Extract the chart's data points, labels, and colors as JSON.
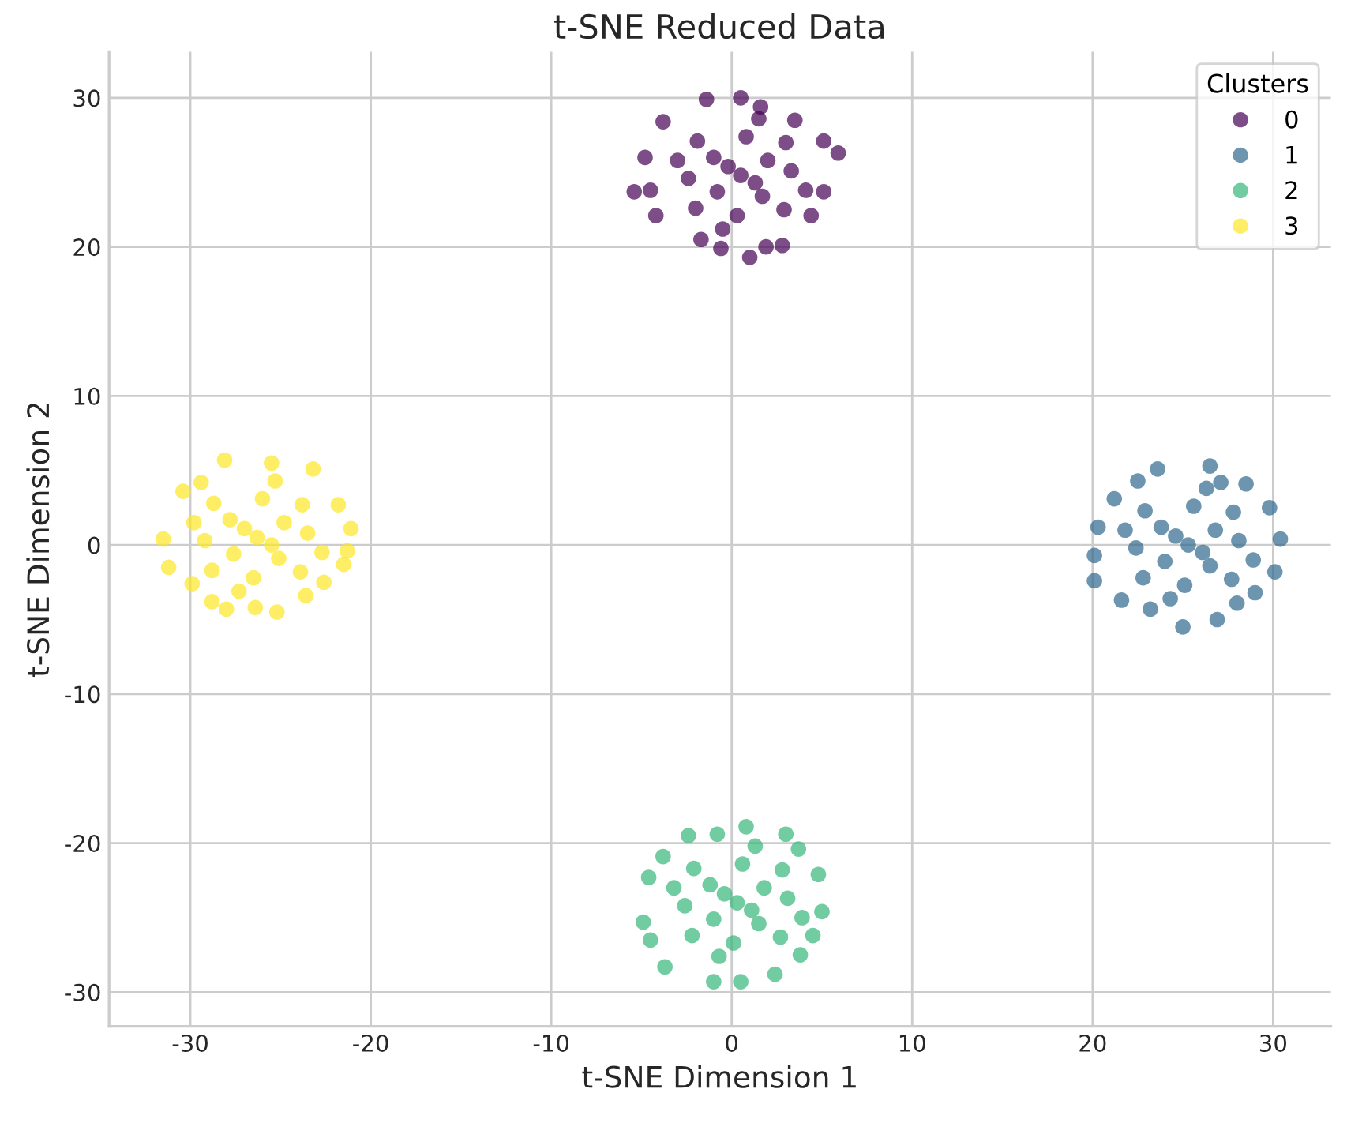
{
  "chart_data": {
    "type": "scatter",
    "title": "t-SNE Reduced Data",
    "xlabel": "t-SNE Dimension 1",
    "ylabel": "t-SNE Dimension 2",
    "legend_title": "Clusters",
    "xlim": [
      -34.5,
      33.2
    ],
    "ylim": [
      -32.3,
      33.1
    ],
    "xticks": [
      -30,
      -20,
      -10,
      0,
      10,
      20,
      30
    ],
    "yticks": [
      -30,
      -20,
      -10,
      0,
      10,
      20,
      30
    ],
    "grid": true,
    "legend": "top right",
    "marker": "circle",
    "series": [
      {
        "name": "0",
        "color": "#440154",
        "x": [
          -1.4,
          0.5,
          1.6,
          -3.8,
          3.5,
          5.1,
          5.9,
          -4.8,
          -5.4,
          -4.5,
          5.1,
          4.4,
          -4.2,
          -1.7,
          -0.6,
          1.0,
          2.8,
          1.9,
          0.5,
          2.0,
          -1.0,
          1.7,
          -0.8,
          3.3,
          -2.4,
          0.8,
          0.3,
          3.0,
          -1.9,
          2.9,
          -2.0,
          1.3,
          -0.2,
          4.1,
          -3.0,
          1.5,
          -0.5
        ],
        "values": [
          29.9,
          30.0,
          29.4,
          28.4,
          28.5,
          27.1,
          26.3,
          26.0,
          23.7,
          23.8,
          23.7,
          22.1,
          22.1,
          20.5,
          19.9,
          19.3,
          20.1,
          20.0,
          24.8,
          25.8,
          26.0,
          23.4,
          23.7,
          25.1,
          24.6,
          27.4,
          22.1,
          27.0,
          27.1,
          22.5,
          22.6,
          24.3,
          25.4,
          23.8,
          25.8,
          28.6,
          21.2
        ]
      },
      {
        "name": "1",
        "color": "#31688e",
        "x": [
          26.5,
          23.6,
          22.5,
          21.2,
          20.3,
          20.1,
          20.1,
          21.6,
          23.2,
          25.0,
          26.9,
          28.0,
          29.0,
          30.1,
          30.4,
          29.8,
          28.5,
          27.1,
          25.3,
          26.8,
          23.8,
          26.5,
          24.0,
          28.1,
          22.4,
          25.6,
          25.1,
          27.8,
          22.9,
          27.7,
          22.8,
          26.1,
          24.6,
          28.9,
          21.8,
          26.3,
          24.3
        ],
        "values": [
          5.3,
          5.1,
          4.3,
          3.1,
          1.2,
          -0.7,
          -2.4,
          -3.7,
          -4.3,
          -5.5,
          -5.0,
          -3.9,
          -3.2,
          -1.8,
          0.4,
          2.5,
          4.1,
          4.2,
          0.0,
          1.0,
          1.2,
          -1.4,
          -1.1,
          0.3,
          -0.2,
          2.6,
          -2.7,
          2.2,
          2.3,
          -2.3,
          -2.2,
          -0.5,
          0.6,
          -1.0,
          1.0,
          3.8,
          -3.6
        ]
      },
      {
        "name": "2",
        "color": "#35b779",
        "x": [
          0.8,
          3.0,
          3.7,
          4.8,
          5.0,
          4.5,
          3.8,
          2.4,
          0.5,
          -1.0,
          -3.7,
          -4.5,
          -4.9,
          -4.6,
          -3.8,
          -2.4,
          -0.8,
          0.3,
          1.8,
          -1.2,
          1.5,
          -1.0,
          3.1,
          -2.6,
          0.6,
          0.1,
          2.8,
          -2.1,
          2.7,
          -2.2,
          1.1,
          -0.4,
          3.9,
          -3.2,
          1.3,
          -0.7
        ],
        "values": [
          -18.9,
          -19.4,
          -20.4,
          -22.1,
          -24.6,
          -26.2,
          -27.5,
          -28.8,
          -29.3,
          -29.3,
          -28.3,
          -26.5,
          -25.3,
          -22.3,
          -20.9,
          -19.5,
          -19.4,
          -24.0,
          -23.0,
          -22.8,
          -25.4,
          -25.1,
          -23.7,
          -24.2,
          -21.4,
          -26.7,
          -21.8,
          -21.7,
          -26.3,
          -26.2,
          -24.5,
          -23.4,
          -25.0,
          -23.0,
          -20.2,
          -27.6
        ]
      },
      {
        "name": "3",
        "color": "#fde725",
        "x": [
          -28.1,
          -25.5,
          -23.2,
          -21.8,
          -21.1,
          -21.3,
          -21.5,
          -22.6,
          -23.6,
          -25.2,
          -26.4,
          -28.0,
          -28.8,
          -29.9,
          -31.2,
          -31.5,
          -30.4,
          -29.4,
          -26.3,
          -24.8,
          -27.8,
          -25.1,
          -27.6,
          -23.5,
          -29.2,
          -26.0,
          -26.5,
          -23.8,
          -28.7,
          -23.9,
          -28.8,
          -25.5,
          -27.0,
          -22.7,
          -29.8,
          -25.3,
          -27.3
        ],
        "values": [
          5.7,
          5.5,
          5.1,
          2.7,
          1.1,
          -0.4,
          -1.3,
          -2.5,
          -3.4,
          -4.5,
          -4.2,
          -4.3,
          -3.8,
          -2.6,
          -1.5,
          0.4,
          3.6,
          4.2,
          0.5,
          1.5,
          1.7,
          -0.9,
          -0.6,
          0.8,
          0.3,
          3.1,
          -2.2,
          2.7,
          2.8,
          -1.8,
          -1.7,
          0.0,
          1.1,
          -0.5,
          1.5,
          4.3,
          -3.1
        ]
      }
    ]
  }
}
